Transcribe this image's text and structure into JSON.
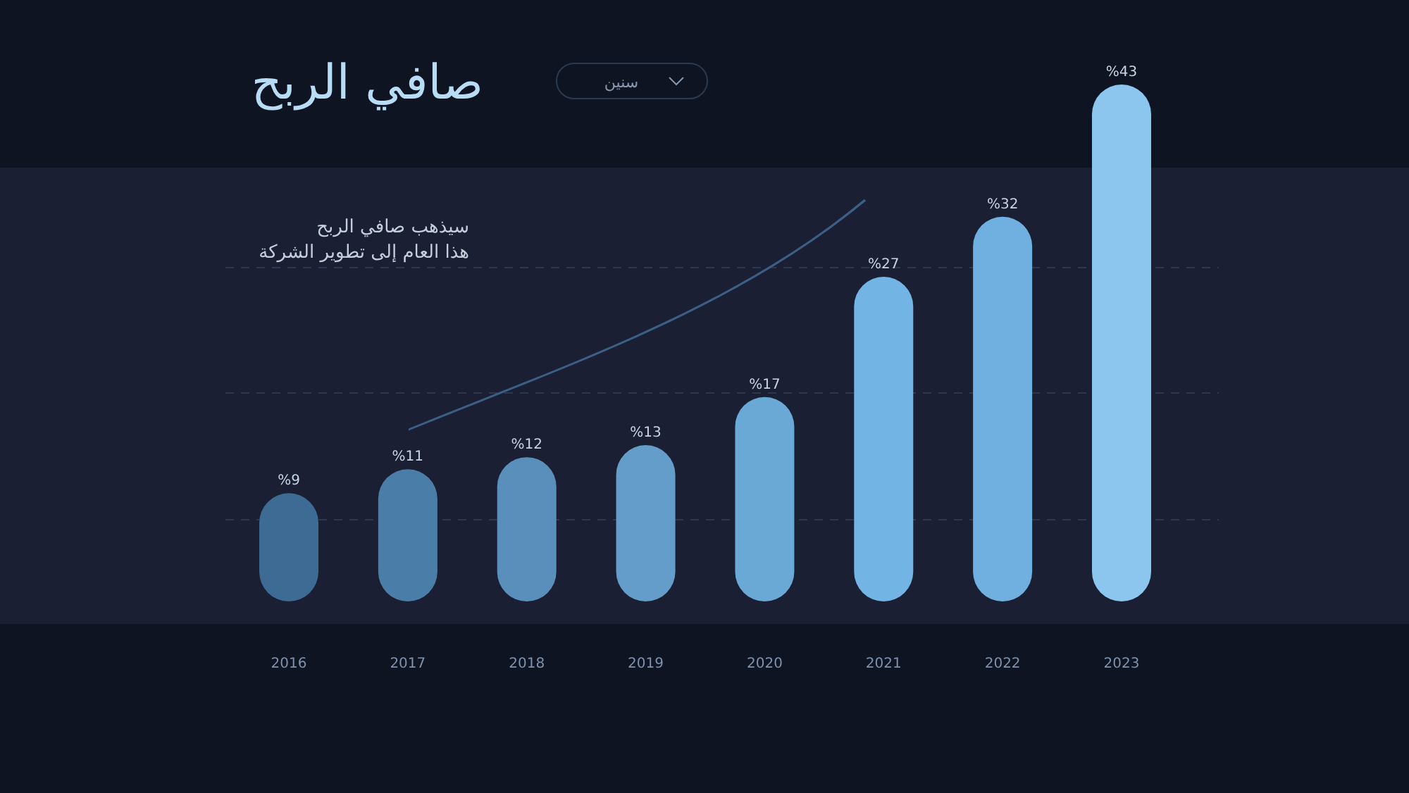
{
  "chart_data": {
    "type": "bar",
    "title": "صافي الربح",
    "annotations": [
      "سيذهب صافي الربح\nهذا العام إلى تطوير الشركة",
      "سنين"
    ],
    "categories": [
      "2016",
      "2017",
      "2018",
      "2019",
      "2020",
      "2021",
      "2022",
      "2023"
    ],
    "values": [
      9,
      11,
      12,
      13,
      17,
      27,
      32,
      43
    ],
    "value_labels": [
      "%9",
      "%11",
      "%12",
      "%13",
      "%17",
      "%27",
      "%32",
      "%43"
    ],
    "colors": [
      "#3e6b93",
      "#4a7ea8",
      "#5a8fbb",
      "#649dc9",
      "#6aa9d6",
      "#72b4e3",
      "#6fb0e0",
      "#8cc6ee"
    ],
    "grid": true
  }
}
